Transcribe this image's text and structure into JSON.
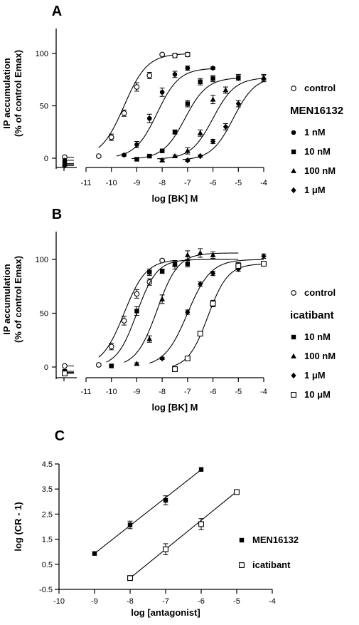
{
  "chart_data": [
    {
      "panel": "A",
      "type": "line",
      "xlabel": "log [BK] M",
      "ylabel_line1": "IP accumulation",
      "ylabel_line2": "(% of control Emax)",
      "xlim": [
        -11,
        -4
      ],
      "ylim": [
        0,
        100
      ],
      "xticks": [
        -11,
        -10,
        -9,
        -8,
        -7,
        -6,
        -5,
        -4
      ],
      "yticks": [
        0,
        50,
        100
      ],
      "antagonist_label": "MEN16132",
      "series": [
        {
          "name": "control",
          "marker": "circle-open",
          "x": [
            -10.5,
            -10,
            -9.5,
            -9,
            -8.5,
            -8,
            -7.5,
            -7
          ],
          "y": [
            2,
            20,
            43,
            68,
            79,
            99,
            98,
            99
          ],
          "err": [
            1,
            3,
            3,
            4,
            3,
            1,
            2,
            2
          ],
          "basal": 1,
          "fit": {
            "bottom": 0,
            "top": 100,
            "ec50": -9.5,
            "hill": 0.95,
            "from": -10.5,
            "to": -7
          }
        },
        {
          "name": "1 nM",
          "marker": "circle-filled",
          "x": [
            -9.5,
            -9,
            -8.5,
            -8,
            -7.5,
            -7,
            -6
          ],
          "y": [
            3,
            13,
            38,
            63,
            80,
            86,
            86
          ],
          "err": [
            1,
            3,
            4,
            4,
            3,
            2,
            1
          ],
          "basal": -2,
          "fit": {
            "bottom": 0,
            "top": 86,
            "ec50": -8.2,
            "hill": 1,
            "from": -9.8,
            "to": -6
          }
        },
        {
          "name": "10 nM",
          "marker": "square-filled",
          "x": [
            -9,
            -8.5,
            -8,
            -7.5,
            -7,
            -6.5,
            -6,
            -5
          ],
          "y": [
            -1,
            2,
            7,
            25,
            52,
            73,
            76,
            77
          ],
          "err": [
            1,
            1,
            1,
            2,
            3,
            3,
            3,
            3
          ],
          "basal": -5,
          "fit": {
            "bottom": -1,
            "top": 77,
            "ec50": -7.1,
            "hill": 1,
            "from": -9.2,
            "to": -5
          }
        },
        {
          "name": "100 nM",
          "marker": "triangle-filled",
          "x": [
            -8,
            -7.5,
            -7,
            -6.5,
            -6,
            -5.5,
            -4
          ],
          "y": [
            -2,
            2,
            7,
            24,
            56,
            65,
            77
          ],
          "err": [
            1,
            1,
            3,
            3,
            4,
            3,
            3
          ],
          "basal": -6,
          "fit": {
            "bottom": -1,
            "top": 77,
            "ec50": -6.0,
            "hill": 1,
            "from": -8.2,
            "to": -4
          }
        },
        {
          "name": "1 μM",
          "marker": "diamond-filled",
          "x": [
            -7,
            -6.5,
            -6,
            -5.5,
            -5,
            -4
          ],
          "y": [
            -2,
            2,
            16,
            30,
            52,
            76
          ],
          "err": [
            1,
            1,
            2,
            3,
            3,
            3
          ],
          "basal": -7,
          "fit": {
            "bottom": -2,
            "top": 78,
            "ec50": -5.2,
            "hill": 1,
            "from": -7.2,
            "to": -4
          }
        }
      ]
    },
    {
      "panel": "B",
      "type": "line",
      "xlabel": "log [BK] M",
      "ylabel_line1": "IP accumulation",
      "ylabel_line2": "(% of control Emax)",
      "xlim": [
        -11,
        -4
      ],
      "ylim": [
        0,
        100
      ],
      "xticks": [
        -11,
        -10,
        -9,
        -8,
        -7,
        -6,
        -5,
        -4
      ],
      "yticks": [
        0,
        50,
        100
      ],
      "antagonist_label": "icatibant",
      "series": [
        {
          "name": "control",
          "marker": "circle-open",
          "x": [
            -10.5,
            -10,
            -9.5,
            -9,
            -8.5,
            -8
          ],
          "y": [
            2,
            19,
            43,
            68,
            79,
            99
          ],
          "err": [
            1,
            3,
            4,
            4,
            3,
            1
          ],
          "basal": 1,
          "fit": {
            "bottom": 0,
            "top": 100,
            "ec50": -9.5,
            "hill": 1,
            "from": -10.5,
            "to": -7.6
          }
        },
        {
          "name": "10 nM",
          "marker": "square-filled",
          "x": [
            -10,
            -9,
            -8.5,
            -8,
            -7.5,
            -7
          ],
          "y": [
            1,
            52,
            88,
            89,
            96,
            96
          ],
          "err": [
            1,
            4,
            3,
            2,
            2,
            3
          ],
          "basal": -4,
          "fit": {
            "bottom": 0,
            "top": 100,
            "ec50": -9.0,
            "hill": 1.1,
            "from": -10.2,
            "to": -5
          }
        },
        {
          "name": "100 nM",
          "marker": "triangle-filled",
          "x": [
            -9,
            -8.5,
            -8,
            -7.5,
            -7,
            -6.5,
            -6
          ],
          "y": [
            3,
            26,
            63,
            95,
            104,
            106,
            104
          ],
          "err": [
            1,
            3,
            4,
            4,
            4,
            4,
            3
          ],
          "basal": -5,
          "fit": {
            "bottom": 0,
            "top": 106,
            "ec50": -8.2,
            "hill": 1.05,
            "from": -9.5,
            "to": -5
          }
        },
        {
          "name": "1 μM",
          "marker": "diamond-filled",
          "x": [
            -8,
            -7,
            -6.5,
            -6,
            -5,
            -4
          ],
          "y": [
            8,
            51,
            77,
            87,
            91,
            103
          ],
          "err": [
            1,
            2,
            2,
            2,
            2,
            2
          ],
          "basal": -5,
          "fit": {
            "bottom": 0,
            "top": 100,
            "ec50": -7.0,
            "hill": 0.95,
            "from": -8.5,
            "to": -4
          }
        },
        {
          "name": "10 μM",
          "marker": "square-open",
          "x": [
            -7.5,
            -7,
            -6.5,
            -6,
            -5,
            -4
          ],
          "y": [
            -2,
            8,
            31,
            59,
            94,
            96
          ],
          "err": [
            1,
            1,
            2,
            3,
            3,
            2
          ],
          "basal": -6,
          "fit": {
            "bottom": -2,
            "top": 96,
            "ec50": -6.2,
            "hill": 1.1,
            "from": -7.6,
            "to": -4
          }
        }
      ]
    },
    {
      "panel": "C",
      "type": "scatter",
      "xlabel": "log [antagonist]",
      "ylabel": "log (CR - 1)",
      "xlim": [
        -10,
        -4
      ],
      "ylim": [
        -0.5,
        4.5
      ],
      "xticks": [
        -10,
        -9,
        -8,
        -7,
        -6,
        -5,
        -4
      ],
      "yticks": [
        -0.5,
        0.5,
        1.5,
        2.5,
        3.5,
        4.5
      ],
      "series": [
        {
          "name": "MEN16132",
          "marker": "square-filled",
          "x": [
            -9,
            -8,
            -7,
            -6
          ],
          "y": [
            0.93,
            2.07,
            3.05,
            4.28
          ],
          "err": [
            0,
            0.15,
            0.18,
            0
          ],
          "line": {
            "from": [
              -9,
              0.93
            ],
            "to": [
              -6,
              4.27
            ]
          }
        },
        {
          "name": "icatibant",
          "marker": "square-open",
          "x": [
            -8,
            -7,
            -6,
            -5
          ],
          "y": [
            -0.05,
            1.1,
            2.1,
            3.38
          ],
          "err": [
            0,
            0.22,
            0.22,
            0
          ],
          "line": {
            "from": [
              -8,
              -0.05
            ],
            "to": [
              -5,
              3.4
            ]
          }
        }
      ]
    }
  ]
}
